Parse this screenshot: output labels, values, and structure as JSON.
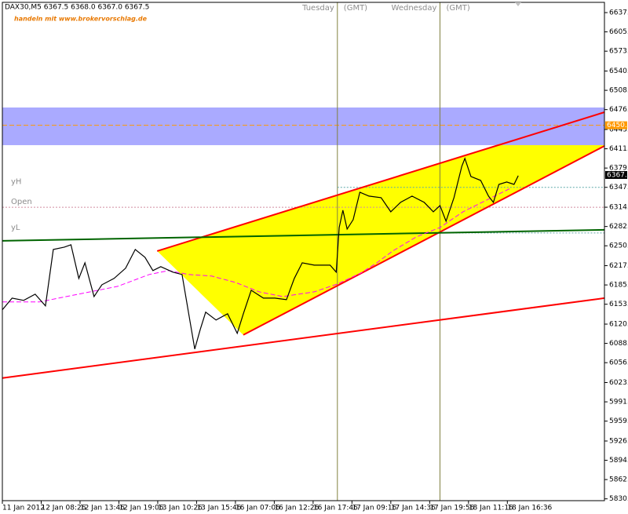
{
  "chart_data": {
    "type": "line",
    "title": "DAX30,M5  6367.5 6368.0 6367.0 6367.5",
    "subtitle": "handeln mit www.brokervorschlag.de",
    "xlim": [
      0,
      992
    ],
    "xticks": [
      {
        "value": 0,
        "label": "11 Jan 2012"
      },
      {
        "value": 64,
        "label": "12 Jan 08:26"
      },
      {
        "value": 128,
        "label": "12 Jan 13:46"
      },
      {
        "value": 192,
        "label": "12 Jan 19:06"
      },
      {
        "value": 256,
        "label": "13 Jan 10:26"
      },
      {
        "value": 320,
        "label": "13 Jan 15:46"
      },
      {
        "value": 384,
        "label": "16 Jan 07:06"
      },
      {
        "value": 448,
        "label": "16 Jan 12:26"
      },
      {
        "value": 512,
        "label": "16 Jan 17:46"
      },
      {
        "value": 576,
        "label": "17 Jan 09:16"
      },
      {
        "value": 640,
        "label": "17 Jan 14:36"
      },
      {
        "value": 704,
        "label": "17 Jan 19:56"
      },
      {
        "value": 768,
        "label": "18 Jan 11:16"
      },
      {
        "value": 832,
        "label": "18 Jan 16:36"
      }
    ],
    "ylim": [
      5827,
      6654
    ],
    "yticks": [
      {
        "value": 6637,
        "label": "6637.0"
      },
      {
        "value": 6605,
        "label": "6605.0"
      },
      {
        "value": 6573,
        "label": "6573.0"
      },
      {
        "value": 6540,
        "label": "6540.0"
      },
      {
        "value": 6508,
        "label": "6508.0"
      },
      {
        "value": 6476,
        "label": "6476.0"
      },
      {
        "value": 6443,
        "label": "6443.0"
      },
      {
        "value": 6411,
        "label": "6411.0"
      },
      {
        "value": 6379,
        "label": "6379.0"
      },
      {
        "value": 6347,
        "label": "6347.0"
      },
      {
        "value": 6314,
        "label": "6314.0"
      },
      {
        "value": 6282,
        "label": "6282.0"
      },
      {
        "value": 6250,
        "label": "6250.0"
      },
      {
        "value": 6217,
        "label": "6217.0"
      },
      {
        "value": 6185,
        "label": "6185.0"
      },
      {
        "value": 6153,
        "label": "6153.0"
      },
      {
        "value": 6120,
        "label": "6120.0"
      },
      {
        "value": 6088,
        "label": "6088.0"
      },
      {
        "value": 6056,
        "label": "6056.0"
      },
      {
        "value": 6023,
        "label": "6023.0"
      },
      {
        "value": 5991,
        "label": "5991.0"
      },
      {
        "value": 5959,
        "label": "5959.0"
      },
      {
        "value": 5926,
        "label": "5926.0"
      },
      {
        "value": 5894,
        "label": "5894.0"
      },
      {
        "value": 5862,
        "label": "5862.0"
      },
      {
        "value": 5830,
        "label": "5830.0"
      }
    ],
    "grid": false,
    "series": [
      {
        "color": "#000000",
        "x": [
          0,
          16,
          35,
          54,
          71,
          84,
          102,
          113,
          126,
          136,
          151,
          164,
          184,
          203,
          219,
          235,
          248,
          261,
          281,
          296,
          307,
          317,
          326,
          335,
          352,
          371,
          387,
          397,
          410,
          430,
          449,
          468,
          481,
          494,
          514,
          540,
          550,
          555,
          561,
          568,
          578,
          589,
          604,
          624,
          640,
          656,
          675,
          695,
          710,
          721,
          731,
          744,
          757,
          762,
          772,
          788,
          801,
          809,
          818,
          831,
          843,
          850
        ],
        "values": [
          6143.7,
          6163.2,
          6159.3,
          6169.7,
          6150.2,
          6243.9,
          6247.8,
          6251.7,
          6195.8,
          6221.8,
          6165.8,
          6185.3,
          6195.8,
          6212.7,
          6243.9,
          6230.9,
          6208.8,
          6215.3,
          6206.2,
          6202.3,
          6137.2,
          6078.6,
          6111.2,
          6139.8,
          6126.8,
          6137.2,
          6104.6,
          6137.2,
          6176.2,
          6163.2,
          6163.2,
          6160.6,
          6195.8,
          6221.8,
          6217.9,
          6217.9,
          6206.2,
          6280.4,
          6309.0,
          6277.8,
          6293.4,
          6338.9,
          6332.4,
          6329.8,
          6306.4,
          6322.0,
          6332.4,
          6322.0,
          6306.4,
          6316.8,
          6290.8,
          6329.8,
          6381.9,
          6394.9,
          6365.0,
          6358.5,
          6332.4,
          6322.0,
          6351.9,
          6355.9,
          6351.9,
          6366.3
        ]
      },
      {
        "color": "#ff00ff",
        "dashed": true,
        "x": [
          0,
          61,
          125,
          190,
          242,
          274,
          307,
          345,
          384,
          423,
          462,
          514,
          552,
          591,
          617,
          643,
          682,
          721,
          759,
          798,
          837
        ],
        "values": [
          6156.7,
          6156.7,
          6169.7,
          6182.7,
          6202.3,
          6208.8,
          6202.3,
          6199.7,
          6189.2,
          6173.6,
          6165.8,
          6173.6,
          6186.6,
          6204.9,
          6221.8,
          6241.3,
          6264.7,
          6280.4,
          6306.4,
          6325.9,
          6345.4
        ]
      }
    ],
    "wedge_color": "#ffff00",
    "trendlines": [
      {
        "color": "#ff0000",
        "x": [
          0,
          992
        ],
        "values": [
          6030.5,
          6163.2
        ]
      },
      {
        "color": "#ff0000",
        "x": [
          255,
          992
        ],
        "values": [
          6241.3,
          6471.7
        ]
      },
      {
        "color": "#ff0000",
        "x": [
          397,
          992
        ],
        "values": [
          6102.0,
          6415.7
        ]
      },
      {
        "color": "#006400",
        "x": [
          0,
          992
        ],
        "values": [
          6258.2,
          6276.5
        ]
      }
    ],
    "zone": {
      "from": 6417.0,
      "to": 6479.5,
      "color": "#aaaaff"
    },
    "resistance": {
      "value": 6450,
      "label": "6450.0",
      "color": "#ff9900"
    },
    "levels": [
      {
        "label": "yH",
        "value": 6347,
        "from": 552,
        "color": "#5fa8a8"
      },
      {
        "label": "Open",
        "value": 6314,
        "from": 0,
        "color": "#d08ca0"
      },
      {
        "label": "yL",
        "value": 6271.3,
        "from": 721,
        "color": "#5fa8a8"
      }
    ],
    "last_price": 6367.5,
    "day_separators": [
      {
        "x": 552,
        "label": "Tuesday",
        "tz": "(GMT)"
      },
      {
        "x": 721,
        "label": "Wednesday",
        "tz": "(GMT)"
      }
    ]
  }
}
